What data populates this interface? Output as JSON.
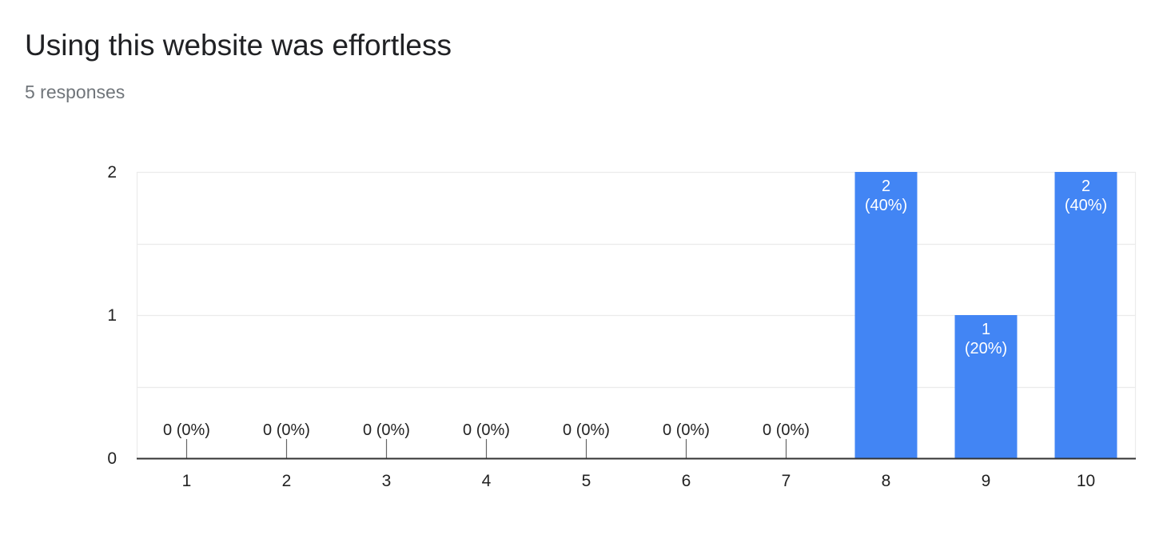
{
  "question": {
    "title": "Using this website was effortless",
    "responses": "5 responses"
  },
  "colors": {
    "bar": "#4285f4",
    "bar_label_inside": "#ffffff",
    "bar_label_outside": "#222222",
    "gridline": "#ebebeb",
    "baseline": "#333333",
    "stub": "#666666"
  },
  "chart_data": {
    "type": "bar",
    "title": "Using this website was effortless",
    "xlabel": "",
    "ylabel": "",
    "categories": [
      "1",
      "2",
      "3",
      "4",
      "5",
      "6",
      "7",
      "8",
      "9",
      "10"
    ],
    "values": [
      0,
      0,
      0,
      0,
      0,
      0,
      0,
      2,
      1,
      2
    ],
    "data_labels": [
      [
        "0 (0%)"
      ],
      [
        "0 (0%)"
      ],
      [
        "0 (0%)"
      ],
      [
        "0 (0%)"
      ],
      [
        "0 (0%)"
      ],
      [
        "0 (0%)"
      ],
      [
        "0 (0%)"
      ],
      [
        "2",
        "(40%)"
      ],
      [
        "1",
        "(20%)"
      ],
      [
        "2",
        "(40%)"
      ]
    ],
    "yticks": [
      "0",
      "1",
      "2"
    ],
    "ylim": [
      0,
      2
    ],
    "minor_gridlines": true,
    "legend": "none"
  }
}
